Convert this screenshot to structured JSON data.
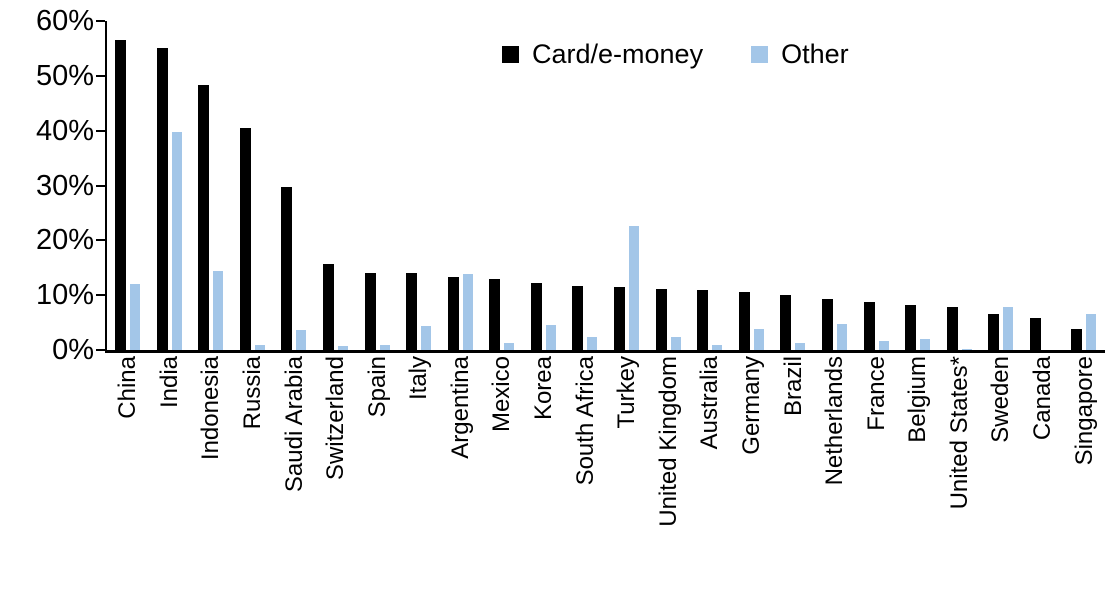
{
  "chart_data": {
    "type": "bar",
    "title": "",
    "xlabel": "",
    "ylabel": "",
    "ylim": [
      0,
      60
    ],
    "ytick_labels": [
      "0%",
      "10%",
      "20%",
      "30%",
      "40%",
      "50%",
      "60%"
    ],
    "grid": false,
    "legend_position": "top-center",
    "categories": [
      "China",
      "India",
      "Indonesia",
      "Russia",
      "Saudi Arabia",
      "Switzerland",
      "Spain",
      "Italy",
      "Argentina",
      "Mexico",
      "Korea",
      "South Africa",
      "Turkey",
      "United Kingdom",
      "Australia",
      "Germany",
      "Brazil",
      "Netherlands",
      "France",
      "Belgium",
      "United States*",
      "Sweden",
      "Canada",
      "Singapore"
    ],
    "series": [
      {
        "name": "Card/e-money",
        "color": "#000000",
        "values": [
          56.5,
          55.0,
          48.3,
          40.4,
          29.8,
          15.7,
          14.1,
          14.1,
          13.4,
          13.0,
          12.3,
          11.7,
          11.5,
          11.2,
          11.0,
          10.6,
          10.0,
          9.3,
          8.7,
          8.2,
          7.8,
          6.6,
          5.9,
          3.9
        ]
      },
      {
        "name": "Other",
        "color": "#a3c6e8",
        "values": [
          12.1,
          39.7,
          14.4,
          1.0,
          3.7,
          0.7,
          0.9,
          4.4,
          13.9,
          1.3,
          4.6,
          2.4,
          22.7,
          2.3,
          1.0,
          3.9,
          1.2,
          4.8,
          1.6,
          2.0,
          0.2,
          7.9,
          0.0,
          6.6
        ]
      }
    ]
  }
}
